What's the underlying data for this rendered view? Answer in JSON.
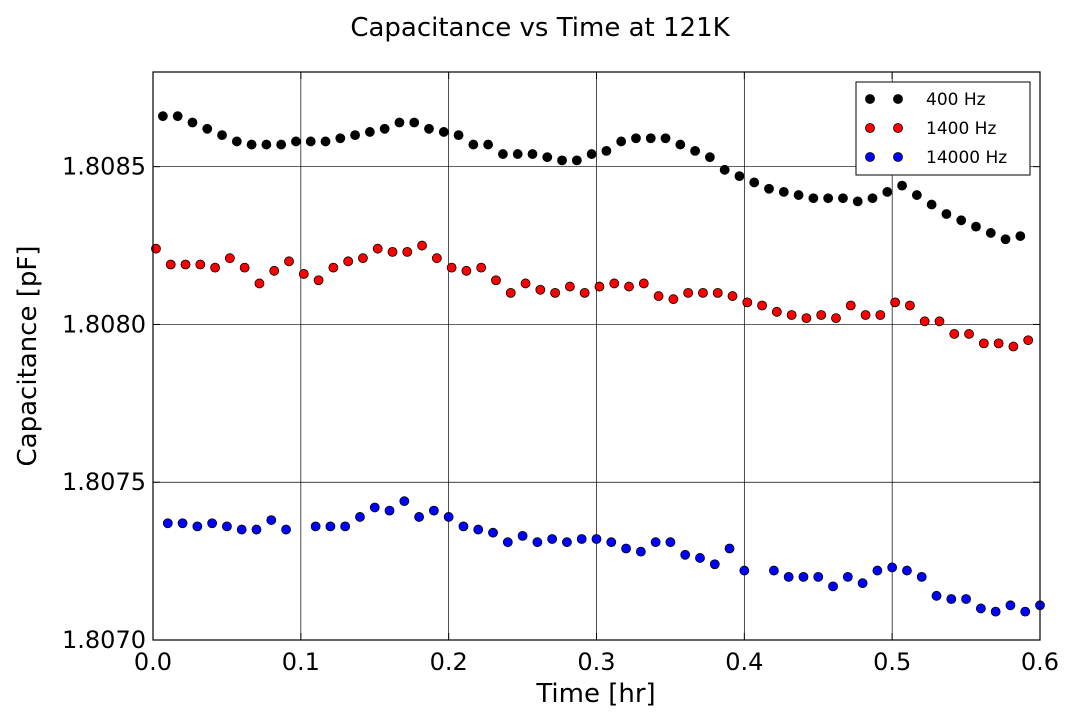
{
  "chart_data": {
    "type": "scatter",
    "title": "Capacitance vs Time at 121K",
    "xlabel": "Time [hr]",
    "ylabel": "Capacitance [pF]",
    "xlim": [
      0.0,
      0.6
    ],
    "ylim": [
      1.807,
      1.8088
    ],
    "xticks": [
      0.0,
      0.1,
      0.2,
      0.3,
      0.4,
      0.5,
      0.6
    ],
    "xtick_labels": [
      "0.0",
      "0.1",
      "0.2",
      "0.3",
      "0.4",
      "0.5",
      "0.6"
    ],
    "yticks": [
      1.807,
      1.8075,
      1.808,
      1.8085
    ],
    "ytick_labels": [
      "1.8070",
      "1.8075",
      "1.8080",
      "1.8085"
    ],
    "grid": true,
    "legend_position": "top-right",
    "series": [
      {
        "name": "400 Hz",
        "color": "#000000",
        "x": [
          0.0067,
          0.0167,
          0.0267,
          0.0367,
          0.0467,
          0.0567,
          0.0667,
          0.0767,
          0.0867,
          0.0967,
          0.1067,
          0.1167,
          0.1267,
          0.1367,
          0.1467,
          0.1567,
          0.1667,
          0.1767,
          0.1867,
          0.1967,
          0.2067,
          0.2167,
          0.2267,
          0.2367,
          0.2467,
          0.2567,
          0.2667,
          0.2767,
          0.2867,
          0.2967,
          0.3067,
          0.3167,
          0.3267,
          0.3367,
          0.3467,
          0.3567,
          0.3667,
          0.3767,
          0.3867,
          0.3967,
          0.4067,
          0.4167,
          0.4267,
          0.4367,
          0.4467,
          0.4567,
          0.4667,
          0.4767,
          0.4867,
          0.4967,
          0.5067,
          0.5167,
          0.5267,
          0.5367,
          0.5467,
          0.5567,
          0.5667,
          0.5767,
          0.5867
        ],
        "y": [
          1.80866,
          1.80866,
          1.80864,
          1.80862,
          1.8086,
          1.80858,
          1.80857,
          1.80857,
          1.80857,
          1.80858,
          1.80858,
          1.80858,
          1.80859,
          1.8086,
          1.80861,
          1.80862,
          1.80864,
          1.80864,
          1.80862,
          1.80861,
          1.8086,
          1.80857,
          1.80857,
          1.80854,
          1.80854,
          1.80854,
          1.80853,
          1.80852,
          1.80852,
          1.80854,
          1.80855,
          1.80858,
          1.80859,
          1.80859,
          1.80859,
          1.80857,
          1.80855,
          1.80853,
          1.80849,
          1.80847,
          1.80845,
          1.80843,
          1.80842,
          1.80841,
          1.8084,
          1.8084,
          1.8084,
          1.80839,
          1.8084,
          1.80842,
          1.80844,
          1.80841,
          1.80838,
          1.80835,
          1.80833,
          1.80831,
          1.80829,
          1.80827,
          1.80828
        ]
      },
      {
        "name": "1400 Hz",
        "color": "#ff0000",
        "x": [
          0.002,
          0.012,
          0.022,
          0.032,
          0.042,
          0.052,
          0.062,
          0.072,
          0.082,
          0.092,
          0.102,
          0.112,
          0.122,
          0.132,
          0.142,
          0.152,
          0.162,
          0.172,
          0.182,
          0.192,
          0.202,
          0.212,
          0.222,
          0.232,
          0.242,
          0.252,
          0.262,
          0.272,
          0.282,
          0.292,
          0.302,
          0.312,
          0.322,
          0.332,
          0.342,
          0.352,
          0.362,
          0.372,
          0.382,
          0.392,
          0.402,
          0.412,
          0.422,
          0.432,
          0.442,
          0.452,
          0.462,
          0.472,
          0.482,
          0.492,
          0.502,
          0.512,
          0.522,
          0.532,
          0.542,
          0.552,
          0.562,
          0.572,
          0.582,
          0.592
        ],
        "y": [
          1.80824,
          1.80819,
          1.80819,
          1.80819,
          1.80818,
          1.80821,
          1.80818,
          1.80813,
          1.80817,
          1.8082,
          1.80816,
          1.80814,
          1.80818,
          1.8082,
          1.80821,
          1.80824,
          1.80823,
          1.80823,
          1.80825,
          1.80821,
          1.80818,
          1.80817,
          1.80818,
          1.80814,
          1.8081,
          1.80813,
          1.80811,
          1.8081,
          1.80812,
          1.8081,
          1.80812,
          1.80813,
          1.80812,
          1.80813,
          1.80809,
          1.80808,
          1.8081,
          1.8081,
          1.8081,
          1.80809,
          1.80807,
          1.80806,
          1.80804,
          1.80803,
          1.80802,
          1.80803,
          1.80802,
          1.80806,
          1.80803,
          1.80803,
          1.80807,
          1.80806,
          1.80801,
          1.80801,
          1.80797,
          1.80797,
          1.80794,
          1.80794,
          1.80793,
          1.80795
        ]
      },
      {
        "name": "14000 Hz",
        "color": "#0000ff",
        "x": [
          0.01,
          0.02,
          0.03,
          0.04,
          0.05,
          0.06,
          0.07,
          0.08,
          0.09,
          0.11,
          0.12,
          0.13,
          0.14,
          0.15,
          0.16,
          0.17,
          0.18,
          0.19,
          0.2,
          0.21,
          0.22,
          0.23,
          0.24,
          0.25,
          0.26,
          0.27,
          0.28,
          0.29,
          0.3,
          0.31,
          0.32,
          0.33,
          0.34,
          0.35,
          0.36,
          0.37,
          0.38,
          0.39,
          0.4,
          0.42,
          0.43,
          0.44,
          0.45,
          0.46,
          0.47,
          0.48,
          0.49,
          0.5,
          0.51,
          0.52,
          0.53,
          0.54,
          0.55,
          0.56,
          0.57,
          0.58,
          0.59,
          0.6
        ],
        "y": [
          1.80737,
          1.80737,
          1.80736,
          1.80737,
          1.80736,
          1.80735,
          1.80735,
          1.80738,
          1.80735,
          1.80736,
          1.80736,
          1.80736,
          1.80739,
          1.80742,
          1.80741,
          1.80744,
          1.80739,
          1.80741,
          1.80739,
          1.80736,
          1.80735,
          1.80734,
          1.80731,
          1.80733,
          1.80731,
          1.80732,
          1.80731,
          1.80732,
          1.80732,
          1.80731,
          1.80729,
          1.80728,
          1.80731,
          1.80731,
          1.80727,
          1.80726,
          1.80724,
          1.80729,
          1.80722,
          1.80722,
          1.8072,
          1.8072,
          1.8072,
          1.80717,
          1.8072,
          1.80718,
          1.80722,
          1.80723,
          1.80722,
          1.8072,
          1.80714,
          1.80713,
          1.80713,
          1.8071,
          1.80709,
          1.80711,
          1.80709,
          1.80711
        ]
      }
    ]
  }
}
